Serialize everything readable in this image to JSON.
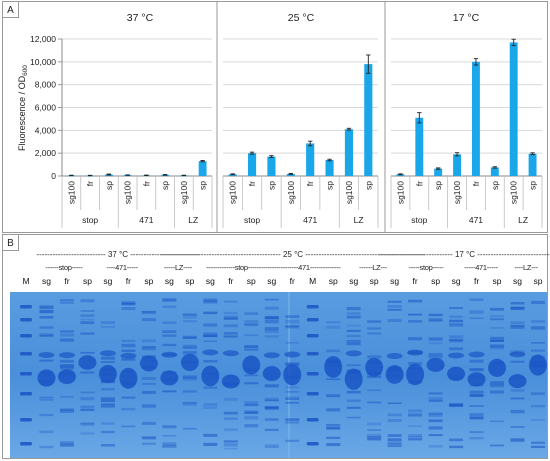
{
  "panel_a_label": "A",
  "panel_b_label": "B",
  "ylabel_main": "Fluorescence / OD",
  "ylabel_sub": "600",
  "colors": {
    "bar": "#1aa7ea",
    "gel_bg": "#4f93d9",
    "band": "#1a55c4"
  },
  "chart_data": [
    {
      "type": "bar",
      "title": "37 °C",
      "categories": [
        "sg100",
        "fr",
        "sp",
        "sg100",
        "fr",
        "sp",
        "sg100",
        "sp"
      ],
      "groups": [
        {
          "label": "stop",
          "start": 0,
          "end": 2
        },
        {
          "label": "471",
          "start": 3,
          "end": 5
        },
        {
          "label": "LZ",
          "start": 6,
          "end": 7
        }
      ],
      "values": [
        50,
        40,
        130,
        80,
        60,
        100,
        50,
        1300
      ],
      "errors": [
        20,
        20,
        40,
        20,
        20,
        30,
        20,
        60
      ],
      "ylim": [
        0,
        12000
      ],
      "yticks": [
        "0",
        "2,000",
        "4,000",
        "6,000",
        "8,000",
        "10,000",
        "12,000"
      ],
      "grid": true
    },
    {
      "type": "bar",
      "title": "25 °C",
      "categories": [
        "sg100",
        "fr",
        "sp",
        "sg100",
        "fr",
        "sp",
        "sg100",
        "sp"
      ],
      "groups": [
        {
          "label": "stop",
          "start": 0,
          "end": 2
        },
        {
          "label": "471",
          "start": 3,
          "end": 5
        },
        {
          "label": "LZ",
          "start": 6,
          "end": 7
        }
      ],
      "values": [
        150,
        2000,
        1700,
        180,
        2850,
        1400,
        4100,
        9800
      ],
      "errors": [
        40,
        90,
        80,
        40,
        200,
        70,
        80,
        800
      ],
      "ylim": [
        0,
        12000
      ],
      "grid": true
    },
    {
      "type": "bar",
      "title": "17 °C",
      "categories": [
        "sg100",
        "fr",
        "sp",
        "sg100",
        "fr",
        "sp",
        "sg100",
        "sp"
      ],
      "groups": [
        {
          "label": "stop",
          "start": 0,
          "end": 2
        },
        {
          "label": "471",
          "start": 3,
          "end": 5
        },
        {
          "label": "LZ",
          "start": 6,
          "end": 7
        }
      ],
      "values": [
        150,
        5100,
        650,
        1900,
        10000,
        750,
        11700,
        1950
      ],
      "errors": [
        40,
        450,
        60,
        140,
        280,
        60,
        280,
        80
      ],
      "ylim": [
        0,
        12000
      ],
      "grid": true
    }
  ],
  "gel": {
    "temp_headers": [
      "-------------------------- 37 °C --------------------------",
      "--------------------------------------------- 25 °C ---------------------------------------------",
      "---------------------------- 17 °C ----------------------------"
    ],
    "construct_headers": [
      "------stop-----",
      "----471-----",
      "-----LZ----",
      "-------------stop----------",
      "-------------471--------------",
      "------LZ---",
      "-----stop-----",
      "-----471-----",
      "----LZ---"
    ],
    "lanes": [
      "M",
      "sg",
      "fr",
      "sp",
      "sg",
      "fr",
      "sp",
      "sg",
      "sp",
      "sg",
      "fr",
      "sp",
      "sg",
      "fr",
      "M",
      "sp",
      "sg",
      "sp",
      "sg",
      "fr",
      "sp",
      "sg",
      "fr",
      "sp",
      "sg",
      "sp"
    ]
  }
}
